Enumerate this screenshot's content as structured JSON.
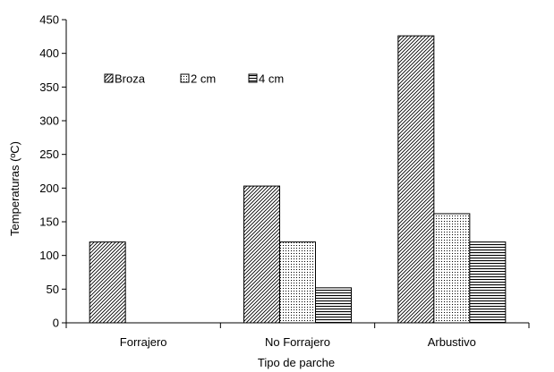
{
  "chart_data": {
    "type": "bar",
    "title": "",
    "xlabel": "Tipo de parche",
    "ylabel": "Temperaturas (ºC)",
    "ylim": [
      0,
      450
    ],
    "yticks": [
      0,
      50,
      100,
      150,
      200,
      250,
      300,
      350,
      400,
      450
    ],
    "categories": [
      "Forrajero",
      "No Forrajero",
      "Arbustivo"
    ],
    "series": [
      {
        "name": "Broza",
        "values": [
          120,
          203,
          426
        ],
        "pattern": "diagonal"
      },
      {
        "name": "2 cm",
        "values": [
          0,
          120,
          162
        ],
        "pattern": "dots"
      },
      {
        "name": "4 cm",
        "values": [
          0,
          52,
          120
        ],
        "pattern": "horizontal"
      }
    ],
    "legend_position": "top-left",
    "grid": false
  }
}
